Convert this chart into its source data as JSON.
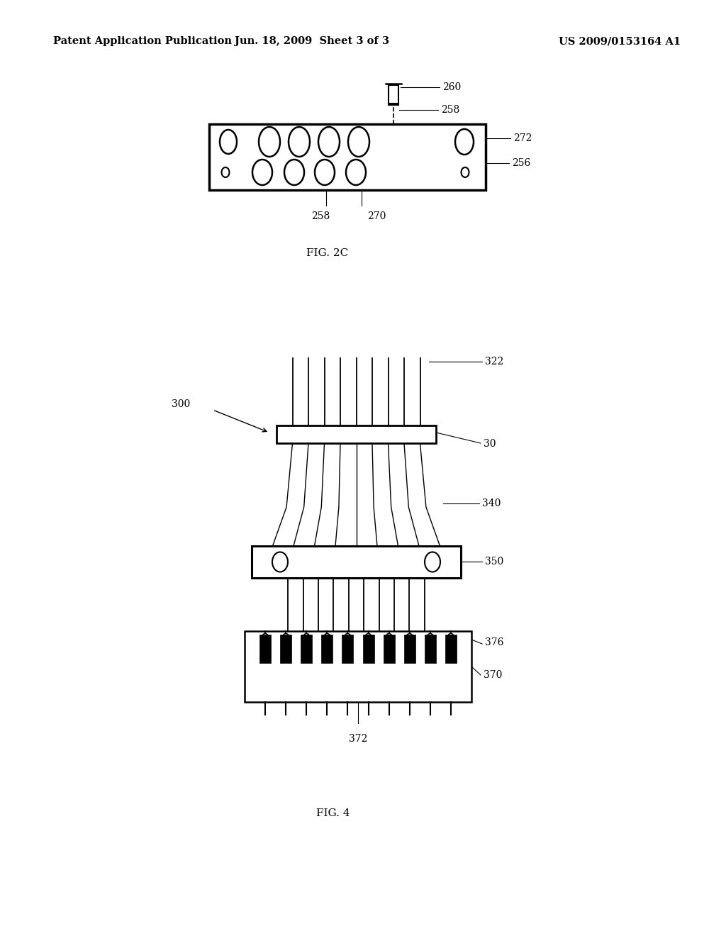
{
  "bg_color": "#ffffff",
  "header_left": "Patent Application Publication",
  "header_center": "Jun. 18, 2009  Sheet 3 of 3",
  "header_right": "US 2009/0153164 A1",
  "fig2c_label": "FIG. 2C",
  "fig4_label": "FIG. 4"
}
